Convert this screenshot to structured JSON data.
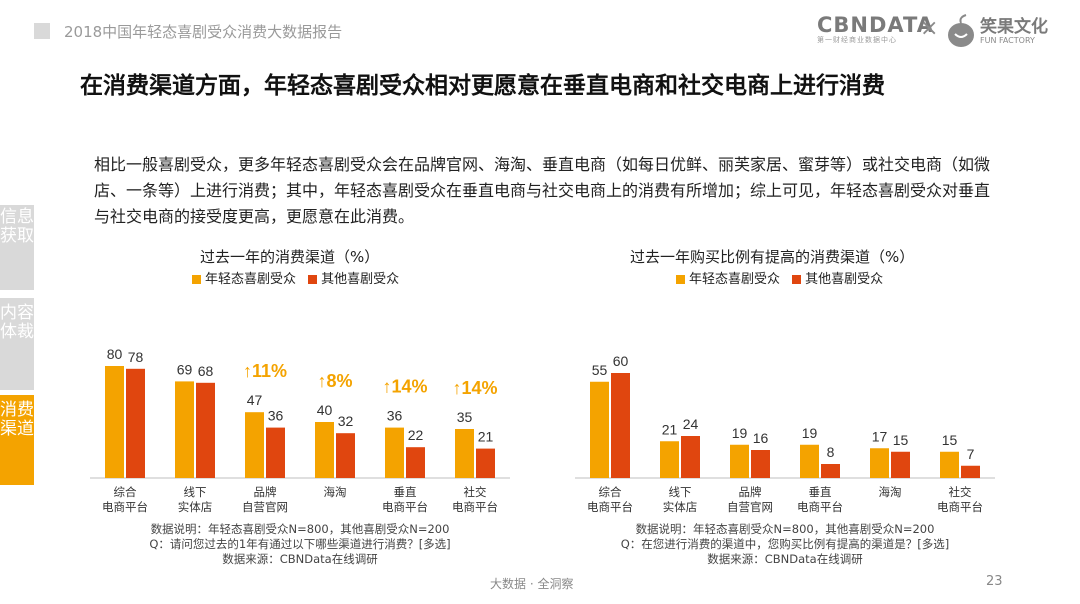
{
  "header": {
    "report_title": "2018中国年轻态喜剧受众消费大数据报告",
    "brand": "CBNDATA",
    "brand_sub": "第一财经商业数据中心",
    "separator": "×",
    "partner": "笑果文化",
    "partner_sub": "FUN FACTORY"
  },
  "page_title": "在消费渠道方面，年轻态喜剧受众相对更愿意在垂直电商和社交电商上进行消费",
  "intro": "相比一般喜剧受众，更多年轻态喜剧受众会在品牌官网、海淘、垂直电商（如每日优鲜、丽芙家居、蜜芽等）或社交电商（如微店、一条等）上进行消费；其中，年轻态喜剧受众在垂直电商与社交电商上的消费有所增加；综上可见，年轻态喜剧受众对垂直与社交电商的接受度更高，更愿意在此消费。",
  "sidebar": {
    "tab1": "信息获取",
    "tab2": "内容体裁",
    "tab3": "消费渠道"
  },
  "colors": {
    "young": "#f4a300",
    "other": "#e0460f",
    "axis": "#bfbfbf",
    "side_active": "#f4a300",
    "side_inactive": "#d9d9d9"
  },
  "chart_data": [
    {
      "type": "bar",
      "title": "过去一年的消费渠道（%）",
      "categories": [
        "综合\n电商平台",
        "线下\n实体店",
        "品牌\n自营官网",
        "海淘",
        "垂直\n电商平台",
        "社交\n电商平台"
      ],
      "series": [
        {
          "name": "年轻态喜剧受众",
          "values": [
            80,
            69,
            47,
            40,
            36,
            35
          ]
        },
        {
          "name": "其他喜剧受众",
          "values": [
            78,
            68,
            36,
            32,
            22,
            21
          ]
        }
      ],
      "annotations": [
        "",
        "",
        "↑11%",
        "↑8%",
        "↑14%",
        "↑14%"
      ],
      "ylim": [
        0,
        100
      ],
      "xlabel": "",
      "ylabel": "",
      "notes": [
        "数据说明：年轻态喜剧受众N=800，其他喜剧受众N=200",
        "Q：请问您过去的1年有通过以下哪些渠道进行消费？[多选]",
        "数据来源：CBNData在线调研"
      ]
    },
    {
      "type": "bar",
      "title": "过去一年购买比例有提高的消费渠道（%）",
      "categories": [
        "综合\n电商平台",
        "线下\n实体店",
        "品牌\n自营官网",
        "垂直\n电商平台",
        "海淘",
        "社交\n电商平台"
      ],
      "series": [
        {
          "name": "年轻态喜剧受众",
          "values": [
            55,
            21,
            19,
            19,
            17,
            15
          ]
        },
        {
          "name": "其他喜剧受众",
          "values": [
            60,
            24,
            16,
            8,
            15,
            7
          ]
        }
      ],
      "annotations": [
        "",
        "",
        "",
        "",
        "",
        ""
      ],
      "ylim": [
        0,
        80
      ],
      "xlabel": "",
      "ylabel": "",
      "notes": [
        "数据说明：年轻态喜剧受众N=800，其他喜剧受众N=200",
        "Q：在您进行消费的渠道中，您购买比例有提高的渠道是？[多选]",
        "数据来源：CBNData在线调研"
      ]
    }
  ],
  "footer": "大数据 · 全洞察",
  "page_number": "23"
}
